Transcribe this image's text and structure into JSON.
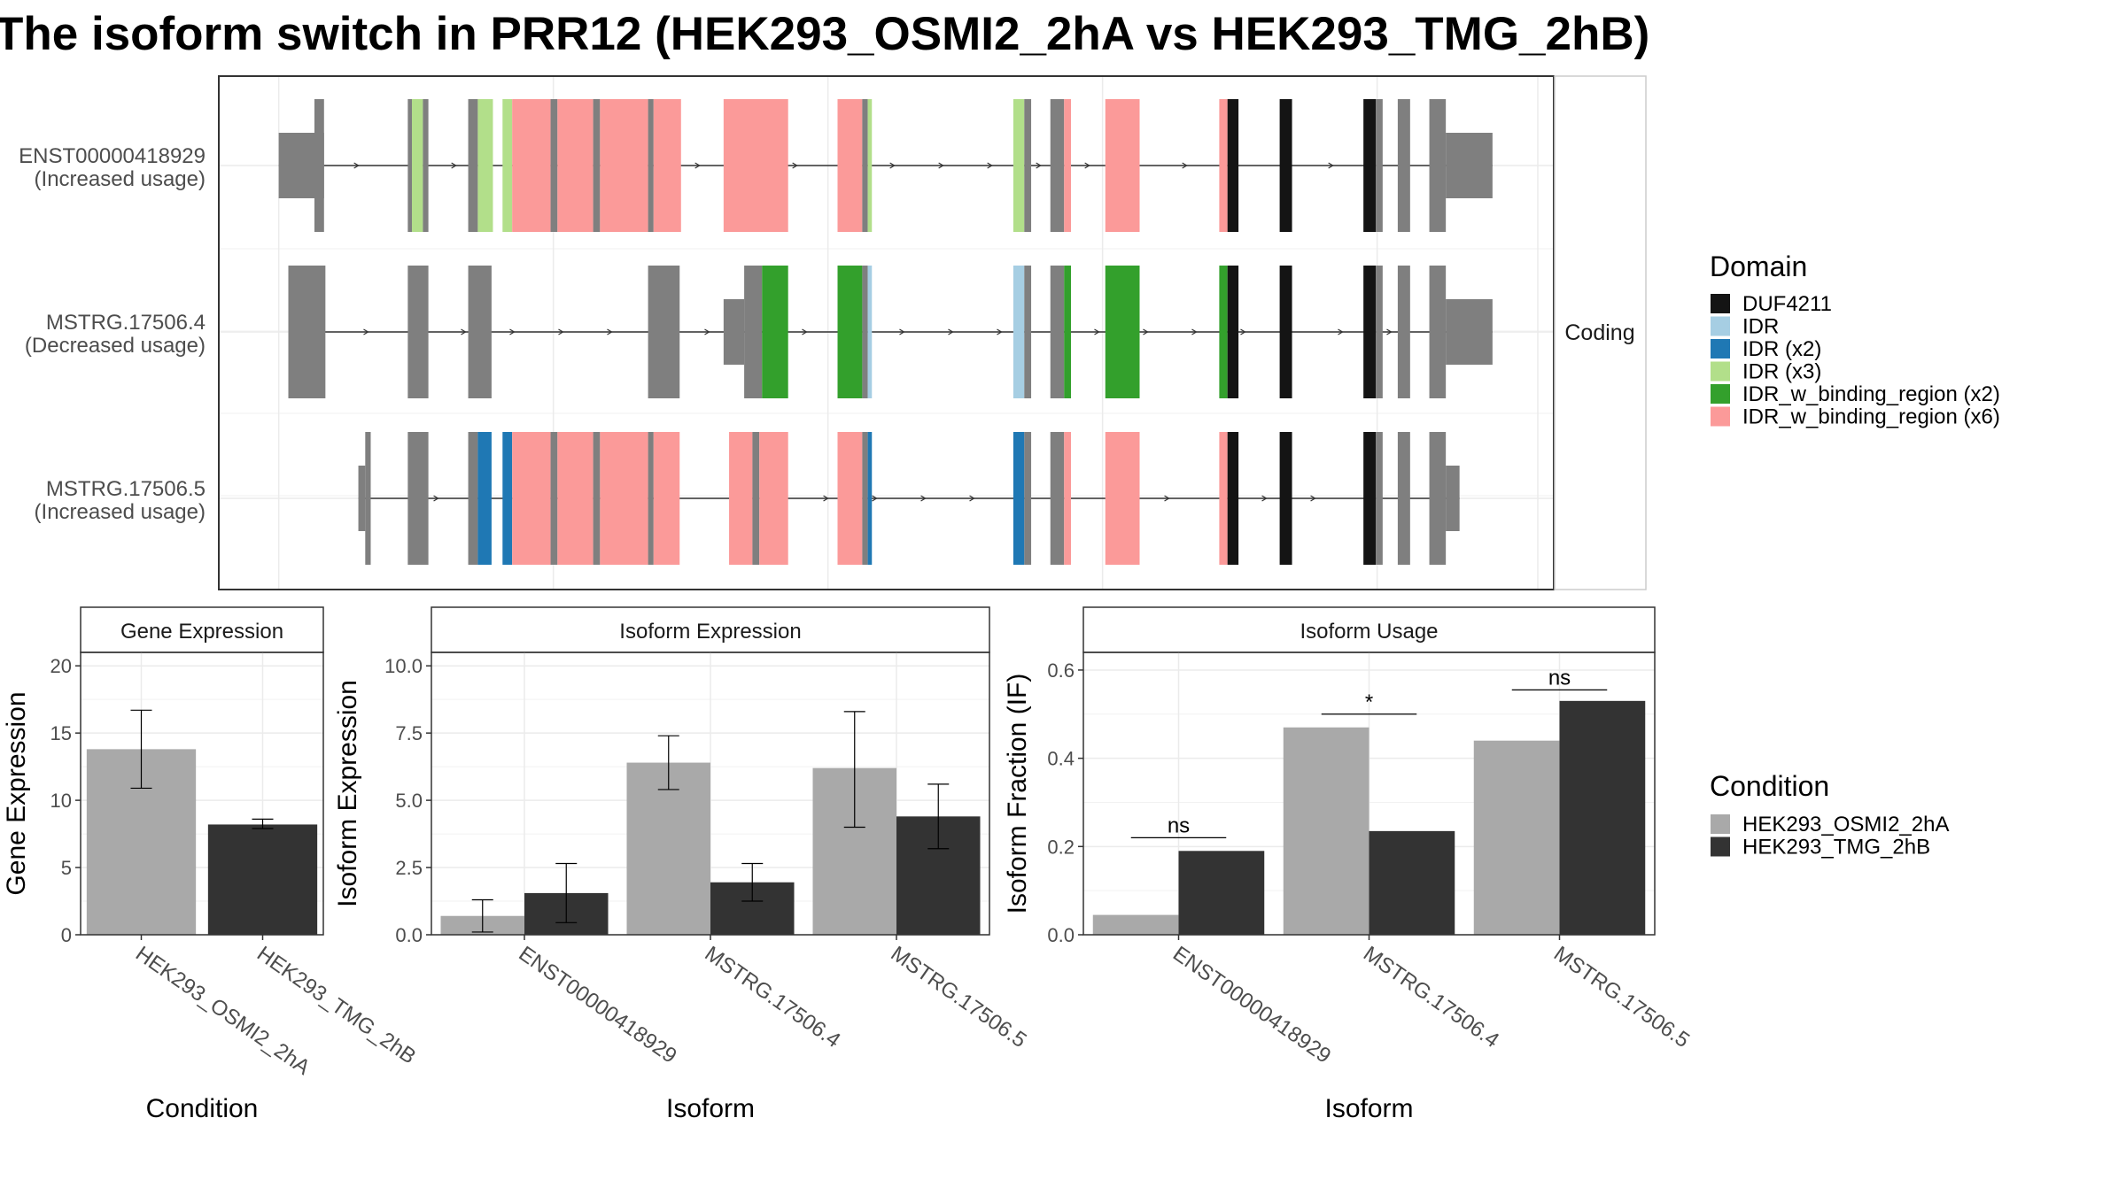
{
  "title": "The isoform switch in PRR12 (HEK293_OSMI2_2hA vs HEK293_TMG_2hB)",
  "colors": {
    "DUF4211": "#141414",
    "IDR": "#a6cee3",
    "IDR (x2)": "#1f78b4",
    "IDR (x3)": "#b2df8a",
    "IDR_w_binding_region (x2)": "#33a02c",
    "IDR_w_binding_region (x6)": "#fb9a99",
    "none": "#7f7f7f",
    "HEK293_OSMI2_2hA": "#a9a9a9",
    "HEK293_TMG_2hB": "#333333"
  },
  "structure": {
    "facet_label": "Coding",
    "isoforms": [
      {
        "id": "ENST00000418929",
        "usage": "(Increased usage)",
        "segments": [
          [
            203,
            236,
            "utr"
          ],
          [
            229,
            236,
            "none"
          ],
          [
            297,
            300,
            "none"
          ],
          [
            300,
            308,
            "IDR (x3)"
          ],
          [
            308,
            312,
            "none"
          ],
          [
            341,
            348,
            "none"
          ],
          [
            348,
            359,
            "IDR (x3)"
          ],
          [
            366,
            373,
            "IDR (x3)"
          ],
          [
            373,
            401,
            "IDR_w_binding_region (x6)"
          ],
          [
            401,
            406,
            "none"
          ],
          [
            406,
            432,
            "IDR_w_binding_region (x6)"
          ],
          [
            432,
            437,
            "none"
          ],
          [
            437,
            472,
            "IDR_w_binding_region (x6)"
          ],
          [
            472,
            476,
            "none"
          ],
          [
            476,
            496,
            "IDR_w_binding_region (x6)"
          ],
          [
            527,
            574,
            "IDR_w_binding_region (x6)"
          ],
          [
            610,
            628,
            "IDR_w_binding_region (x6)"
          ],
          [
            628,
            632,
            "none"
          ],
          [
            632,
            635,
            "IDR (x3)"
          ],
          [
            738,
            746,
            "IDR (x3)"
          ],
          [
            746,
            751,
            "none"
          ],
          [
            765,
            775,
            "none"
          ],
          [
            775,
            780,
            "IDR_w_binding_region (x6)"
          ],
          [
            805,
            830,
            "IDR_w_binding_region (x6)"
          ],
          [
            888,
            894,
            "IDR_w_binding_region (x6)"
          ],
          [
            894,
            902,
            "DUF4211"
          ],
          [
            932,
            941,
            "DUF4211"
          ],
          [
            993,
            1002,
            "DUF4211"
          ],
          [
            1002,
            1007,
            "none"
          ],
          [
            1018,
            1027,
            "none"
          ],
          [
            1041,
            1053,
            "none"
          ],
          [
            1053,
            1087,
            "utr"
          ]
        ]
      },
      {
        "id": "MSTRG.17506.4",
        "usage": "(Decreased usage)",
        "segments": [
          [
            210,
            237,
            "none"
          ],
          [
            297,
            312,
            "none"
          ],
          [
            341,
            358,
            "none"
          ],
          [
            472,
            495,
            "none"
          ],
          [
            527,
            542,
            "utr"
          ],
          [
            542,
            555,
            "none"
          ],
          [
            555,
            574,
            "IDR_w_binding_region (x2)"
          ],
          [
            610,
            628,
            "IDR_w_binding_region (x2)"
          ],
          [
            628,
            632,
            "none"
          ],
          [
            632,
            635,
            "IDR"
          ],
          [
            738,
            746,
            "IDR"
          ],
          [
            746,
            751,
            "none"
          ],
          [
            765,
            775,
            "none"
          ],
          [
            775,
            780,
            "IDR_w_binding_region (x2)"
          ],
          [
            805,
            830,
            "IDR_w_binding_region (x2)"
          ],
          [
            888,
            894,
            "IDR_w_binding_region (x2)"
          ],
          [
            894,
            902,
            "DUF4211"
          ],
          [
            932,
            941,
            "DUF4211"
          ],
          [
            993,
            1002,
            "DUF4211"
          ],
          [
            1002,
            1007,
            "none"
          ],
          [
            1018,
            1027,
            "none"
          ],
          [
            1041,
            1053,
            "none"
          ],
          [
            1053,
            1087,
            "utr"
          ]
        ]
      },
      {
        "id": "MSTRG.17506.5",
        "usage": "(Increased usage)",
        "segments": [
          [
            261,
            266,
            "utr"
          ],
          [
            266,
            270,
            "none"
          ],
          [
            297,
            312,
            "none"
          ],
          [
            341,
            348,
            "none"
          ],
          [
            348,
            358,
            "IDR (x2)"
          ],
          [
            366,
            373,
            "IDR (x2)"
          ],
          [
            373,
            401,
            "IDR_w_binding_region (x6)"
          ],
          [
            401,
            406,
            "none"
          ],
          [
            406,
            432,
            "IDR_w_binding_region (x6)"
          ],
          [
            432,
            437,
            "none"
          ],
          [
            437,
            472,
            "IDR_w_binding_region (x6)"
          ],
          [
            472,
            476,
            "none"
          ],
          [
            476,
            495,
            "IDR_w_binding_region (x6)"
          ],
          [
            531,
            548,
            "IDR_w_binding_region (x6)"
          ],
          [
            548,
            553,
            "none"
          ],
          [
            553,
            574,
            "IDR_w_binding_region (x6)"
          ],
          [
            610,
            628,
            "IDR_w_binding_region (x6)"
          ],
          [
            628,
            632,
            "none"
          ],
          [
            632,
            635,
            "IDR (x2)"
          ],
          [
            738,
            746,
            "IDR (x2)"
          ],
          [
            746,
            751,
            "none"
          ],
          [
            765,
            775,
            "none"
          ],
          [
            775,
            780,
            "IDR_w_binding_region (x6)"
          ],
          [
            805,
            830,
            "IDR_w_binding_region (x6)"
          ],
          [
            888,
            894,
            "IDR_w_binding_region (x6)"
          ],
          [
            894,
            902,
            "DUF4211"
          ],
          [
            932,
            941,
            "DUF4211"
          ],
          [
            993,
            1002,
            "DUF4211"
          ],
          [
            1002,
            1007,
            "none"
          ],
          [
            1018,
            1027,
            "none"
          ],
          [
            1041,
            1053,
            "none"
          ],
          [
            1053,
            1063,
            "utr"
          ]
        ]
      }
    ]
  },
  "domain_legend": {
    "title": "Domain",
    "items": [
      "DUF4211",
      "IDR",
      "IDR (x2)",
      "IDR (x3)",
      "IDR_w_binding_region (x2)",
      "IDR_w_binding_region (x6)"
    ]
  },
  "condition_legend": {
    "title": "Condition",
    "items": [
      "HEK293_OSMI2_2hA",
      "HEK293_TMG_2hB"
    ]
  },
  "chart_data": [
    {
      "type": "bar",
      "title": "Gene Expression",
      "xlabel": "Condition",
      "ylabel": "Gene Expression",
      "ylim": [
        0,
        21
      ],
      "yticks": [
        0,
        5,
        10,
        15,
        20
      ],
      "ytick_labels": [
        "0",
        "5",
        "10",
        "15",
        "20"
      ],
      "categories": [
        "HEK293_OSMI2_2hA",
        "HEK293_TMG_2hB"
      ],
      "values": [
        13.8,
        8.2
      ],
      "errors": [
        [
          10.9,
          16.7
        ],
        [
          7.9,
          8.6
        ]
      ],
      "colors": [
        "#a9a9a9",
        "#333333"
      ],
      "grid": true
    },
    {
      "type": "bar",
      "title": "Isoform Expression",
      "xlabel": "Isoform",
      "ylabel": "Isoform Expression",
      "ylim": [
        0,
        10.5
      ],
      "yticks": [
        0,
        2.5,
        5,
        7.5,
        10
      ],
      "ytick_labels": [
        "0.0",
        "2.5",
        "5.0",
        "7.5",
        "10.0"
      ],
      "categories": [
        "ENST00000418929",
        "MSTRG.17506.4",
        "MSTRG.17506.5"
      ],
      "series": [
        {
          "name": "HEK293_OSMI2_2hA",
          "values": [
            0.7,
            6.4,
            6.2
          ],
          "errors": [
            [
              0.1,
              1.3
            ],
            [
              5.4,
              7.4
            ],
            [
              4.0,
              8.3
            ]
          ]
        },
        {
          "name": "HEK293_TMG_2hB",
          "values": [
            1.55,
            1.95,
            4.4
          ],
          "errors": [
            [
              0.45,
              2.65
            ],
            [
              1.25,
              2.65
            ],
            [
              3.2,
              5.6
            ]
          ]
        }
      ],
      "grid": true
    },
    {
      "type": "bar",
      "title": "Isoform Usage",
      "xlabel": "Isoform",
      "ylabel": "Isoform Fraction (IF)",
      "ylim": [
        0,
        0.64
      ],
      "yticks": [
        0,
        0.2,
        0.4,
        0.6
      ],
      "ytick_labels": [
        "0.0",
        "0.2",
        "0.4",
        "0.6"
      ],
      "categories": [
        "ENST00000418929",
        "MSTRG.17506.4",
        "MSTRG.17506.5"
      ],
      "series": [
        {
          "name": "HEK293_OSMI2_2hA",
          "values": [
            0.045,
            0.47,
            0.44
          ]
        },
        {
          "name": "HEK293_TMG_2hB",
          "values": [
            0.19,
            0.235,
            0.53
          ]
        }
      ],
      "significance": [
        {
          "label": "ns",
          "y": 0.22
        },
        {
          "label": "*",
          "y": 0.5
        },
        {
          "label": "ns",
          "y": 0.555
        }
      ],
      "grid": true
    }
  ]
}
